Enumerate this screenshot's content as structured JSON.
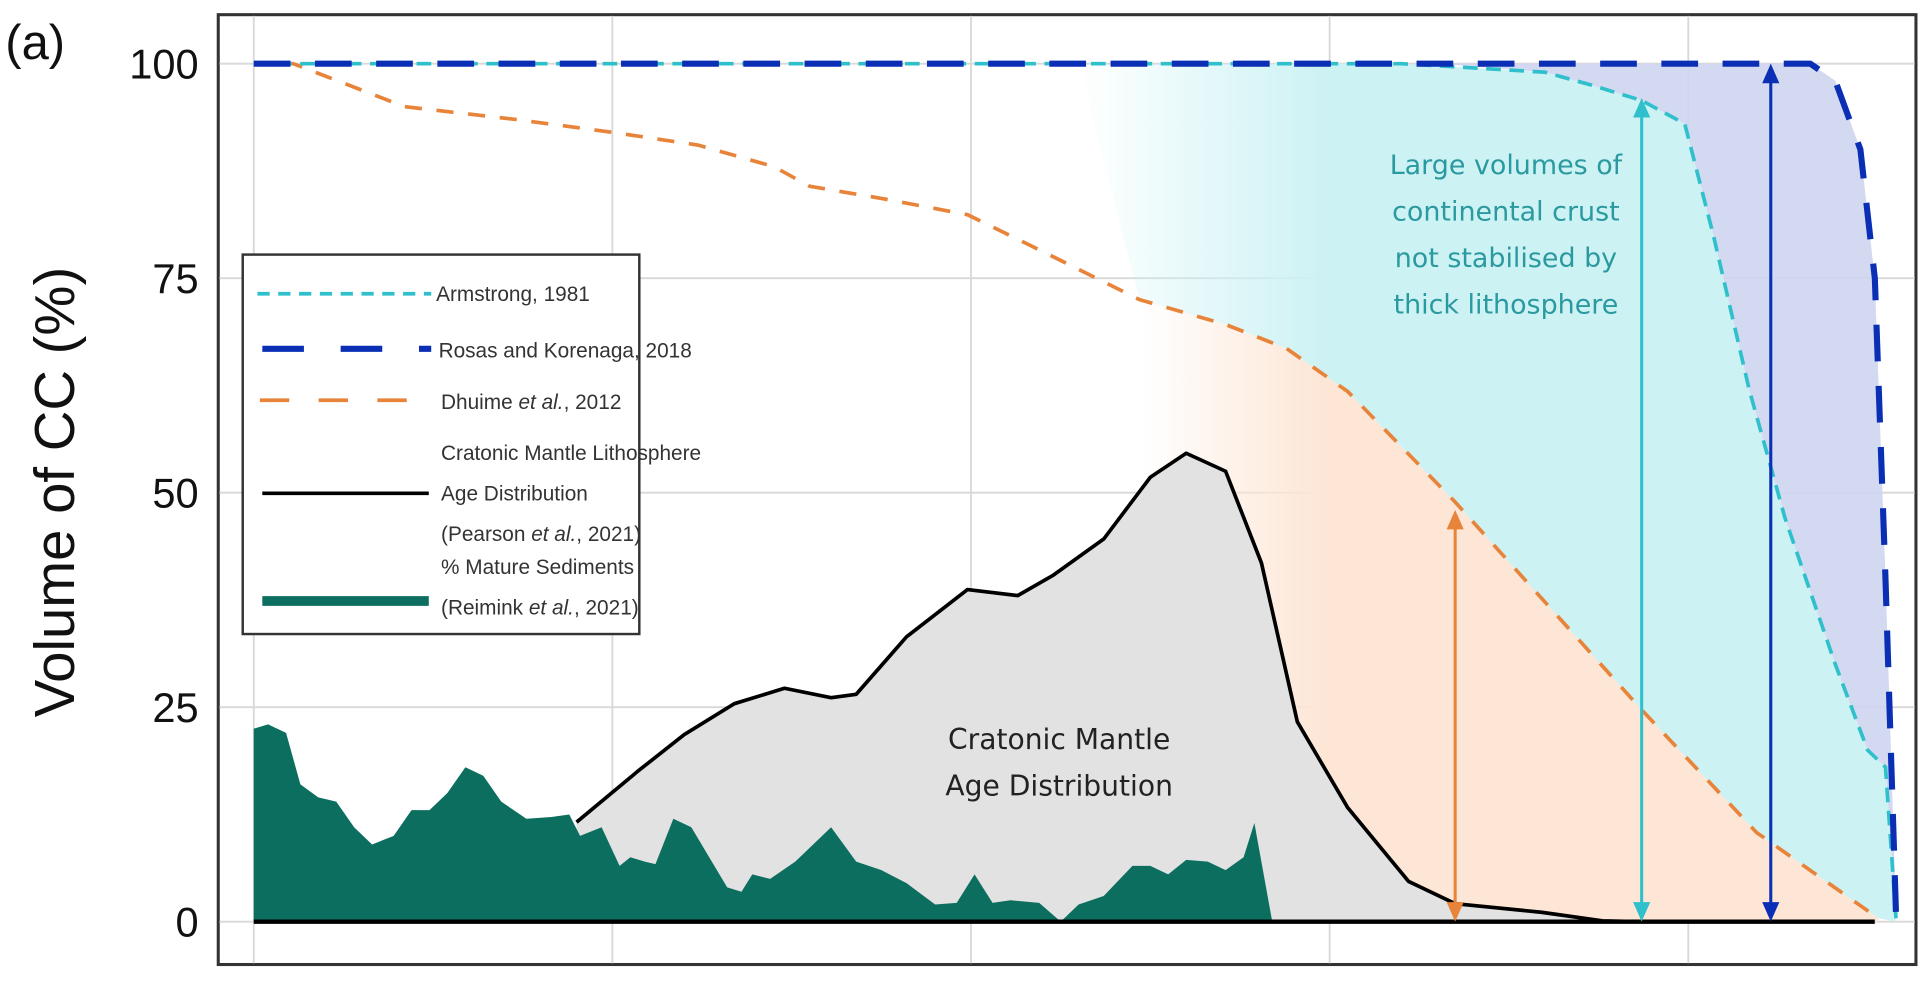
{
  "chart_data": {
    "type": "line",
    "panel_label": "(a)",
    "ylabel": "Volume of CC (%)",
    "ylim": [
      0,
      100
    ],
    "yticks": [
      "0",
      "25",
      "50",
      "75",
      "100"
    ],
    "xlim": [
      -0.1,
      4.65
    ],
    "x_gridlines": [
      0,
      1,
      2,
      3,
      4
    ],
    "grid": true,
    "legend_position": "left-middle",
    "colors": {
      "armstrong": "#2fc0cc",
      "rosas": "#0a2fb5",
      "dhuime": "#e8843a",
      "cratonic": "#000000",
      "sediments": "#0b6e5f",
      "cratonic_fill": "#e2e2e2",
      "annotation": "#2a9aa0"
    },
    "series": [
      {
        "name": "Armstrong, 1981",
        "style": "dashed",
        "x": [
          0,
          3.2,
          3.6,
          3.73,
          3.87,
          3.99,
          4.07,
          4.17,
          4.27,
          4.41,
          4.5,
          4.55,
          4.58
        ],
        "y": [
          100,
          100,
          99,
          97.5,
          95.7,
          93,
          80,
          62,
          47,
          30,
          20,
          18,
          0
        ]
      },
      {
        "name": "Rosas and Korenaga, 2018",
        "style": "dashed-thick",
        "x": [
          0,
          4.34,
          4.41,
          4.48,
          4.52,
          4.55,
          4.58
        ],
        "y": [
          100,
          100,
          98,
          90,
          75,
          40,
          0
        ]
      },
      {
        "name": "Dhuime et al., 2012",
        "style": "dashed",
        "x": [
          0,
          0.11,
          0.42,
          0.73,
          1.0,
          1.24,
          1.45,
          1.55,
          1.75,
          1.99,
          2.2,
          2.47,
          2.71,
          2.88,
          3.05,
          3.35,
          3.87,
          4.19,
          4.53
        ],
        "y": [
          100,
          100,
          95,
          93.5,
          92,
          90.5,
          88,
          85.7,
          84.3,
          82.4,
          78.1,
          72.5,
          69.6,
          66.8,
          61.8,
          48.9,
          24.7,
          10.4,
          0.4
        ]
      },
      {
        "name": "Cratonic Mantle Lithosphere Age Distribution (Pearson et al., 2021)",
        "style": "solid",
        "x": [
          0.9,
          1.07,
          1.2,
          1.34,
          1.48,
          1.61,
          1.68,
          1.82,
          1.99,
          2.13,
          2.23,
          2.37,
          2.5,
          2.6,
          2.71,
          2.81,
          2.91,
          3.05,
          3.22,
          3.35,
          3.59,
          3.76,
          3.87,
          4.51
        ],
        "y": [
          11.6,
          17.5,
          21.8,
          25.4,
          27.2,
          26.1,
          26.5,
          33.2,
          38.7,
          38,
          40.4,
          44.6,
          51.8,
          54.6,
          52.5,
          41.8,
          23.3,
          13.3,
          4.7,
          2.1,
          1.1,
          0.1,
          0,
          0
        ]
      },
      {
        "name": "% Mature Sediments (Reimink et al., 2021)",
        "style": "area",
        "x": [
          0,
          0.04,
          0.09,
          0.13,
          0.18,
          0.23,
          0.28,
          0.33,
          0.39,
          0.44,
          0.49,
          0.54,
          0.59,
          0.64,
          0.69,
          0.76,
          0.83,
          0.88,
          0.91,
          0.97,
          1.02,
          1.05,
          1.09,
          1.12,
          1.17,
          1.22,
          1.27,
          1.32,
          1.36,
          1.39,
          1.44,
          1.51,
          1.61,
          1.68,
          1.75,
          1.82,
          1.9,
          1.96,
          2.01,
          2.06,
          2.11,
          2.19,
          2.25,
          2.3,
          2.37,
          2.45,
          2.5,
          2.55,
          2.6,
          2.66,
          2.71,
          2.76,
          2.79,
          2.84
        ],
        "y": [
          22.5,
          23,
          22,
          16,
          14.5,
          14,
          11,
          9,
          10,
          13,
          13,
          15,
          18,
          17,
          14,
          12,
          12.2,
          12.5,
          10,
          11,
          6.5,
          7.5,
          7,
          6.7,
          12,
          11,
          7.5,
          4,
          3.5,
          5.5,
          5,
          7,
          11,
          7,
          6,
          4.5,
          2,
          2.2,
          5.5,
          2.2,
          2.5,
          2.2,
          0,
          2,
          3,
          6.5,
          6.5,
          5.5,
          7.2,
          7,
          6,
          7.5,
          11.5,
          0
        ]
      }
    ],
    "arrows": [
      {
        "color": "orange",
        "x": 3.35,
        "from": 0,
        "to": 48
      },
      {
        "color": "cyan",
        "x": 3.87,
        "from": 0,
        "to": 96
      },
      {
        "color": "blue",
        "x": 4.23,
        "from": 0,
        "to": 100
      }
    ],
    "legend": [
      {
        "pre": "Armstrong, 1981",
        "it": "",
        "post": ""
      },
      {
        "pre": "Rosas and Korenaga, 2018",
        "it": "",
        "post": ""
      },
      {
        "pre": "Dhuime ",
        "it": "et al.",
        "post": ", 2012"
      },
      {
        "l1": "Cratonic Mantle Lithosphere",
        "l2": "Age Distribution",
        "l3pre": "(Pearson ",
        "l3it": "et al.",
        "l3post": ", 2021)"
      },
      {
        "l1": "% Mature Sediments",
        "l2pre": "(Reimink ",
        "l2it": "et al.",
        "l2post": ", 2021)"
      }
    ],
    "annotations": {
      "crust": [
        "Large volumes of",
        "continental crust",
        "not stabilised by",
        "thick lithosphere"
      ],
      "mantle": [
        "Cratonic Mantle",
        "Age Distribution"
      ]
    }
  }
}
